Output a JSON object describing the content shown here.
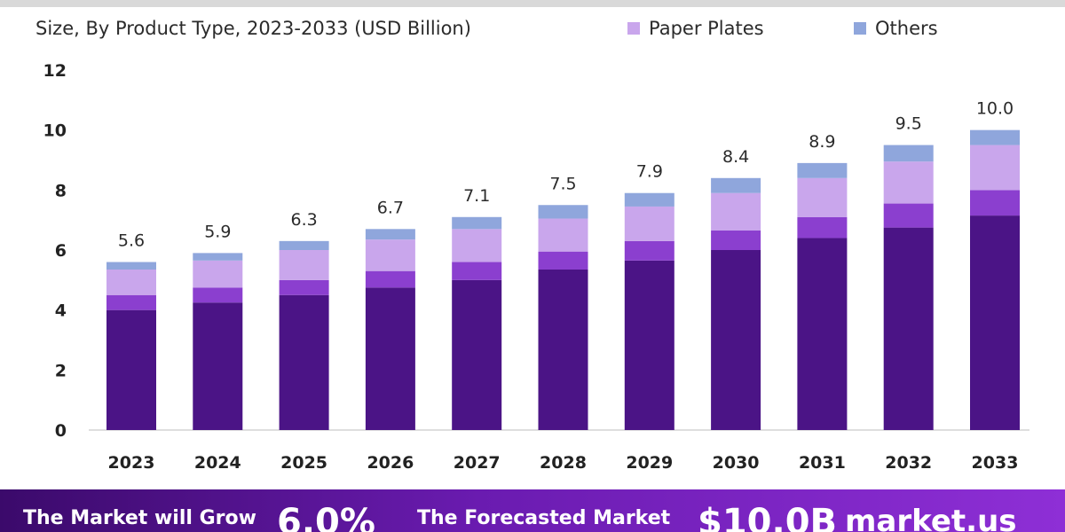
{
  "header": {
    "subtitle": "Size, By Product Type, 2023-2033 (USD Billion)"
  },
  "legend": {
    "items": [
      {
        "label": "Paper Plates",
        "color": "#c9a6ec"
      },
      {
        "label": "Others",
        "color": "#8fa6dc"
      }
    ]
  },
  "chart_data": {
    "type": "bar",
    "stacked": true,
    "categories": [
      "2023",
      "2024",
      "2025",
      "2026",
      "2027",
      "2028",
      "2029",
      "2030",
      "2031",
      "2032",
      "2033"
    ],
    "ylim": [
      0,
      12
    ],
    "yticks": [
      0,
      2,
      4,
      6,
      8,
      10,
      12
    ],
    "grid": false,
    "legend_position": "top-right",
    "totals": [
      5.6,
      5.9,
      6.3,
      6.7,
      7.1,
      7.5,
      7.9,
      8.4,
      8.9,
      9.5,
      10.0
    ],
    "total_labels": [
      "5.6",
      "5.9",
      "6.3",
      "6.7",
      "7.1",
      "7.5",
      "7.9",
      "8.4",
      "8.9",
      "9.5",
      "10.0"
    ],
    "series": [
      {
        "color": "#4b1486",
        "values": [
          4.0,
          4.25,
          4.5,
          4.75,
          5.0,
          5.35,
          5.65,
          6.0,
          6.4,
          6.75,
          7.15
        ]
      },
      {
        "color": "#8b3fcf",
        "values": [
          0.5,
          0.5,
          0.5,
          0.55,
          0.6,
          0.6,
          0.65,
          0.65,
          0.7,
          0.8,
          0.85
        ]
      },
      {
        "name": "Paper Plates",
        "color": "#c9a6ec",
        "values": [
          0.85,
          0.9,
          1.0,
          1.05,
          1.1,
          1.1,
          1.15,
          1.25,
          1.3,
          1.4,
          1.5
        ]
      },
      {
        "name": "Others",
        "color": "#8fa6dc",
        "values": [
          0.25,
          0.25,
          0.3,
          0.35,
          0.4,
          0.45,
          0.45,
          0.5,
          0.5,
          0.55,
          0.5
        ]
      }
    ]
  },
  "footer": {
    "grow_text": "The Market will Grow",
    "cagr": "6.0%",
    "forecast_text": "The Forecasted Market",
    "forecast_value": "$10.0B",
    "brand": "market.us"
  }
}
